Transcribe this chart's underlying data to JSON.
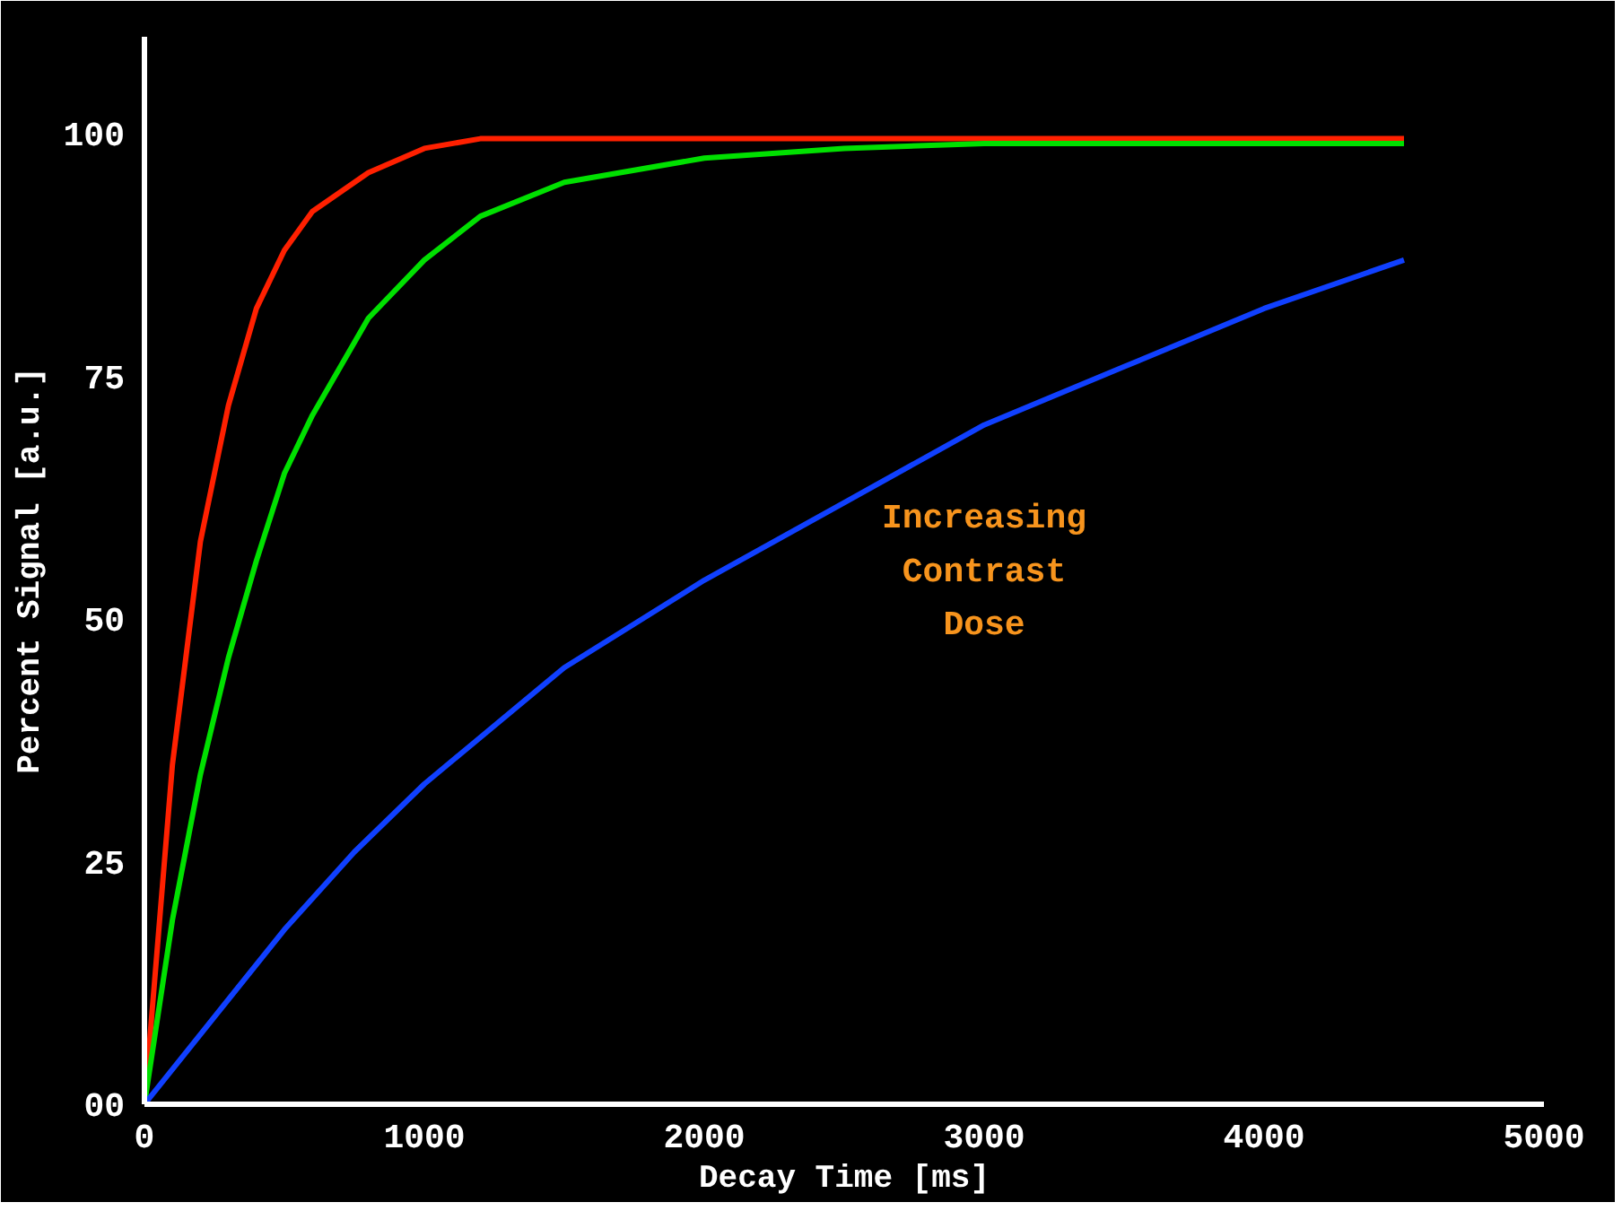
{
  "chart_data": {
    "type": "line",
    "xlabel": "Decay Time [ms]",
    "ylabel": "Percent Signal [a.u.]",
    "xlim": [
      0,
      5000
    ],
    "ylim": [
      0,
      110
    ],
    "xticks": [
      0,
      1000,
      2000,
      3000,
      4000,
      5000
    ],
    "yticks": [
      {
        "value": 0,
        "label": "00"
      },
      25,
      50,
      75,
      100
    ],
    "marker": "none",
    "line_style": "solid",
    "series": [
      {
        "color": "#ff2000",
        "x": [
          0,
          100,
          200,
          300,
          400,
          500,
          600,
          800,
          1000,
          1200,
          1500,
          2000,
          3000,
          4500
        ],
        "values": [
          0,
          35,
          58,
          72,
          82,
          88,
          92,
          96,
          98.5,
          99.5,
          99.5,
          99.5,
          99.5,
          99.5
        ]
      },
      {
        "color": "#00e000",
        "x": [
          0,
          100,
          200,
          300,
          400,
          500,
          600,
          800,
          1000,
          1200,
          1500,
          2000,
          2500,
          3000,
          4500
        ],
        "values": [
          0,
          19,
          34,
          46,
          56,
          65,
          71,
          81,
          87,
          91.5,
          95,
          97.5,
          98.5,
          99,
          99
        ]
      },
      {
        "color": "#1040ff",
        "x": [
          0,
          250,
          500,
          750,
          1000,
          1500,
          2000,
          2500,
          3000,
          3500,
          4000,
          4500
        ],
        "values": [
          0,
          9,
          18,
          26,
          33,
          45,
          54,
          62,
          70,
          76,
          82,
          87
        ]
      }
    ],
    "annotations": [
      "Increasing Contrast Dose"
    ]
  }
}
